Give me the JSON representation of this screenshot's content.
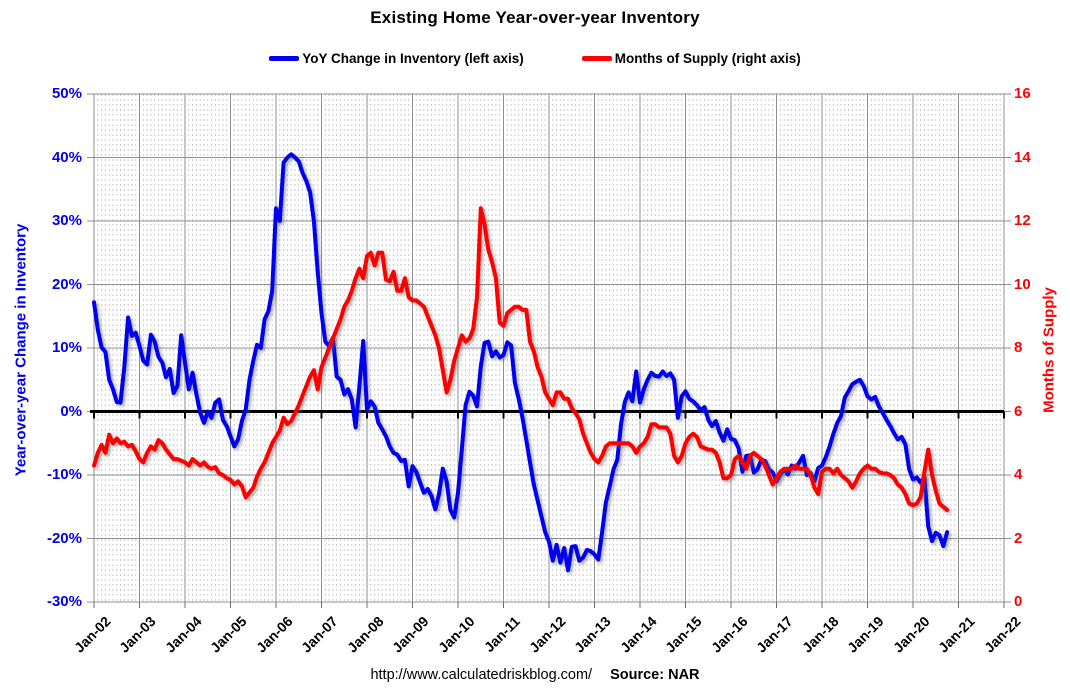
{
  "title": "Existing Home Year-over-year Inventory",
  "legend": [
    {
      "label": "YoY Change in Inventory (left axis)",
      "color": "#0000EE"
    },
    {
      "label": "Months of Supply (right axis)",
      "color": "#FF0000"
    }
  ],
  "footer": {
    "url": "http://www.calculatedriskblog.com/",
    "source": "Source: NAR"
  },
  "left_axis": {
    "title": "Year-over-year Change in Inventory",
    "color": "#0000EE",
    "tick_labels": [
      "50%",
      "40%",
      "30%",
      "20%",
      "10%",
      "0%",
      "-10%",
      "-20%",
      "-30%"
    ],
    "tick_values": [
      50,
      40,
      30,
      20,
      10,
      0,
      -10,
      -20,
      -30
    ],
    "min": -30,
    "max": 50
  },
  "right_axis": {
    "title": "Months of Supply",
    "color": "#FF0000",
    "tick_labels": [
      "16",
      "14",
      "12",
      "10",
      "8",
      "6",
      "4",
      "2",
      "0"
    ],
    "tick_values": [
      16,
      14,
      12,
      10,
      8,
      6,
      4,
      2,
      0
    ],
    "min": 0,
    "max": 16
  },
  "x_axis": {
    "tick_labels": [
      "Jan-02",
      "Jan-03",
      "Jan-04",
      "Jan-05",
      "Jan-06",
      "Jan-07",
      "Jan-08",
      "Jan-09",
      "Jan-10",
      "Jan-11",
      "Jan-12",
      "Jan-13",
      "Jan-14",
      "Jan-15",
      "Jan-16",
      "Jan-17",
      "Jan-18",
      "Jan-19",
      "Jan-20",
      "Jan-21",
      "Jan-22"
    ],
    "minor_gridlines": "monthly-dashed",
    "major_gridlines": "yearly-solid"
  },
  "chart_data": {
    "type": "line",
    "title": "Existing Home Year-over-year Inventory",
    "x_start": "2002-01",
    "x_interval": "monthly",
    "x_end": "2020-10",
    "grid": true,
    "legend_position": "top-center",
    "zero_line": "thick black at 0% / 6 months",
    "series": [
      {
        "name": "YoY Change in Inventory",
        "axis": "left",
        "unit": "%",
        "color": "#0000EE",
        "values": [
          17.2,
          12.9,
          10.1,
          9.4,
          5.0,
          3.5,
          1.5,
          1.4,
          7.0,
          14.8,
          11.9,
          12.4,
          10.3,
          8.0,
          7.4,
          12.1,
          11.0,
          8.6,
          7.7,
          5.4,
          6.7,
          2.9,
          4.0,
          12.0,
          7.7,
          3.5,
          6.1,
          2.7,
          -0.2,
          -1.8,
          0.0,
          -1.0,
          1.4,
          1.9,
          -1.3,
          -2.3,
          -3.9,
          -5.5,
          -4.4,
          -1.5,
          0.3,
          5.0,
          8.0,
          10.5,
          10.0,
          14.5,
          15.8,
          19.0,
          32.0,
          30.0,
          39.2,
          40.0,
          40.5,
          40.0,
          39.4,
          37.6,
          36.3,
          34.5,
          30.0,
          22.0,
          15.5,
          11.0,
          10.3,
          11.6,
          5.5,
          5.0,
          2.7,
          3.5,
          1.9,
          -2.5,
          4.0,
          11.1,
          0.3,
          1.6,
          0.8,
          -1.8,
          -2.8,
          -3.9,
          -5.5,
          -6.5,
          -6.8,
          -7.8,
          -7.6,
          -11.8,
          -8.6,
          -9.5,
          -11.2,
          -12.8,
          -12.2,
          -13.3,
          -15.4,
          -13.0,
          -9.0,
          -11.0,
          -15.5,
          -16.7,
          -12.8,
          -6.0,
          1.0,
          3.1,
          2.5,
          0.8,
          7.1,
          10.8,
          11.0,
          8.7,
          9.5,
          8.5,
          8.9,
          10.9,
          10.4,
          4.5,
          2.0,
          -1.0,
          -4.5,
          -8.0,
          -11.5,
          -14.0,
          -16.5,
          -19.0,
          -20.5,
          -23.5,
          -21.0,
          -23.8,
          -21.5,
          -25.0,
          -21.3,
          -21.2,
          -23.5,
          -23.0,
          -21.8,
          -22.0,
          -22.5,
          -23.3,
          -19.0,
          -14.3,
          -11.8,
          -9.1,
          -7.6,
          -2.0,
          1.5,
          3.0,
          1.6,
          6.3,
          1.4,
          3.5,
          5.0,
          6.1,
          5.6,
          5.5,
          6.3,
          5.6,
          6.0,
          5.0,
          -1.0,
          2.4,
          3.2,
          2.0,
          1.6,
          1.0,
          0.2,
          0.7,
          -1.3,
          -2.3,
          -1.5,
          -3.3,
          -4.6,
          -2.8,
          -4.3,
          -4.5,
          -5.8,
          -9.5,
          -7.0,
          -6.9,
          -9.6,
          -9.1,
          -7.6,
          -7.8,
          -9.1,
          -9.6,
          -11.0,
          -9.9,
          -9.1,
          -9.9,
          -8.5,
          -9.0,
          -8.0,
          -7.0,
          -10.0,
          -9.7,
          -11.0,
          -8.9,
          -8.5,
          -7.2,
          -5.5,
          -3.5,
          -1.8,
          -0.7,
          2.2,
          3.2,
          4.3,
          4.7,
          5.0,
          4.0,
          2.4,
          1.9,
          2.3,
          0.8,
          -0.2,
          -1.3,
          -2.3,
          -3.4,
          -4.4,
          -4.0,
          -5.2,
          -9.1,
          -10.7,
          -10.4,
          -11.2,
          -10.3,
          -18.1,
          -20.4,
          -19.1,
          -19.5,
          -21.2,
          -19.0
        ]
      },
      {
        "name": "Months of Supply",
        "axis": "right",
        "unit": "months",
        "color": "#FF0000",
        "values": [
          4.3,
          4.7,
          4.95,
          4.7,
          5.27,
          5.0,
          5.15,
          5.0,
          5.05,
          4.9,
          4.95,
          4.75,
          4.5,
          4.4,
          4.7,
          4.9,
          4.8,
          5.1,
          5.0,
          4.8,
          4.65,
          4.5,
          4.5,
          4.45,
          4.4,
          4.3,
          4.5,
          4.4,
          4.3,
          4.4,
          4.26,
          4.2,
          4.25,
          4.05,
          4.0,
          3.9,
          3.85,
          3.7,
          3.8,
          3.65,
          3.3,
          3.45,
          3.6,
          3.95,
          4.2,
          4.4,
          4.7,
          5.0,
          5.2,
          5.4,
          5.8,
          5.6,
          5.7,
          5.95,
          6.2,
          6.5,
          6.8,
          7.1,
          7.3,
          6.7,
          7.4,
          7.7,
          8.0,
          8.3,
          8.6,
          8.9,
          9.3,
          9.5,
          9.8,
          10.2,
          10.5,
          10.2,
          10.9,
          11.0,
          10.6,
          11.0,
          11.0,
          10.15,
          10.1,
          10.4,
          9.8,
          9.8,
          10.2,
          9.6,
          9.5,
          9.5,
          9.4,
          9.3,
          9.0,
          8.7,
          8.4,
          8.0,
          7.3,
          6.6,
          7.0,
          7.6,
          8.0,
          8.4,
          8.2,
          8.3,
          8.6,
          9.6,
          12.4,
          11.9,
          11.1,
          10.7,
          10.2,
          8.8,
          8.7,
          9.1,
          9.2,
          9.3,
          9.3,
          9.2,
          9.2,
          8.2,
          7.9,
          7.4,
          7.1,
          6.6,
          6.4,
          6.2,
          6.6,
          6.6,
          6.4,
          6.4,
          6.1,
          5.95,
          5.75,
          5.3,
          5.0,
          4.7,
          4.5,
          4.4,
          4.6,
          4.9,
          5.0,
          5.0,
          5.0,
          5.0,
          5.0,
          5.0,
          4.9,
          4.7,
          4.9,
          5.0,
          5.2,
          5.6,
          5.6,
          5.5,
          5.5,
          5.5,
          5.3,
          4.6,
          4.4,
          4.6,
          5.0,
          5.2,
          5.3,
          5.2,
          4.9,
          4.85,
          4.8,
          4.8,
          4.7,
          4.4,
          3.9,
          3.9,
          4.0,
          4.5,
          4.6,
          4.4,
          4.2,
          4.6,
          4.7,
          4.6,
          4.5,
          4.3,
          4.0,
          3.7,
          3.9,
          4.1,
          4.2,
          4.2,
          4.2,
          4.3,
          4.2,
          4.2,
          4.2,
          4.0,
          3.6,
          3.4,
          4.1,
          4.2,
          4.2,
          4.05,
          4.2,
          4.0,
          3.9,
          3.8,
          3.6,
          3.8,
          4.05,
          4.2,
          4.3,
          4.2,
          4.2,
          4.1,
          4.05,
          4.05,
          4.0,
          3.9,
          3.7,
          3.6,
          3.4,
          3.1,
          3.05,
          3.1,
          3.3,
          4.1,
          4.8,
          4.0,
          3.5,
          3.1,
          3.0,
          2.9
        ]
      }
    ]
  }
}
